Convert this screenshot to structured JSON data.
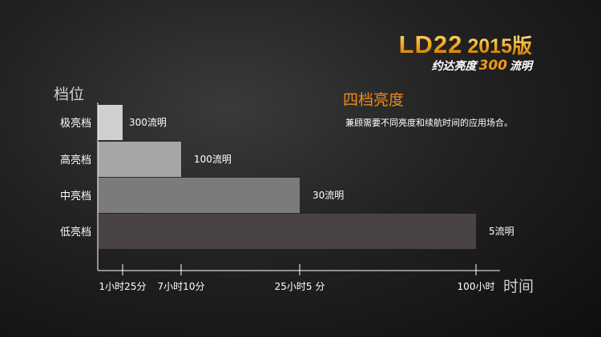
{
  "brand": {
    "model": "LD22",
    "year": "2015版",
    "sub_prefix": "约达亮度",
    "sub_number": "300",
    "sub_suffix": "流明"
  },
  "headline": "四档亮度",
  "description": "兼顾需要不同亮度和续航时间的应用场合。",
  "colors": {
    "accent": "#f08a1a",
    "bar_ji": "#d0d0d0",
    "bar_gao": "#a6a6a6",
    "bar_zhong": "#7c7b7b",
    "bar_di": "#4a4343"
  },
  "chart_data": {
    "type": "bar",
    "orientation": "horizontal",
    "ylabel": "档位",
    "xlabel": "时间",
    "categories": [
      "极亮档",
      "高亮档",
      "中亮档",
      "低亮档"
    ],
    "values_hours": [
      1.4167,
      7.1667,
      25.0833,
      100
    ],
    "data_labels": [
      "300流明",
      "100流明",
      "30流明",
      "5流明"
    ],
    "x_ticks": [
      "1小时25分",
      "7小时10分",
      "25小时5 分",
      "100小时"
    ],
    "grid": false,
    "legend": "none"
  }
}
